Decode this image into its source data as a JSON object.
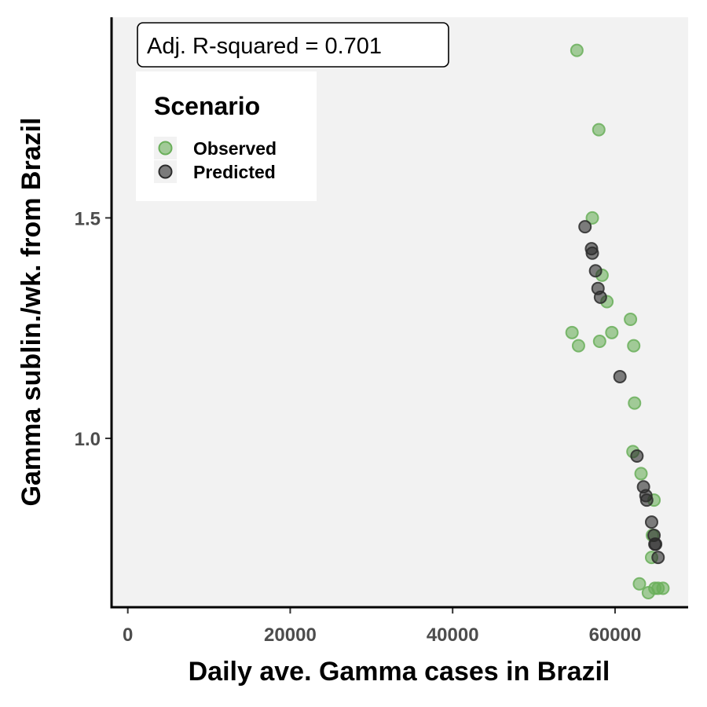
{
  "chart_data": {
    "type": "scatter",
    "annotation": "Adj. R-squared = 0.701",
    "xlabel": "Daily ave. Gamma cases in Brazil",
    "ylabel": "Gamma sublin./wk. from Brazil",
    "xlim": [
      -2000,
      69000
    ],
    "ylim": [
      0.617,
      1.955
    ],
    "xticks": [
      0,
      20000,
      40000,
      60000
    ],
    "xtick_labels": [
      "0",
      "20000",
      "40000",
      "60000"
    ],
    "yticks": [
      1.0,
      1.5
    ],
    "ytick_labels": [
      "1.0",
      "1.5"
    ],
    "grid": false,
    "legend": {
      "title": "Scenario",
      "position": "top-left"
    },
    "colors": {
      "observed": "#6aaf5a",
      "predicted": "#2b2b2b",
      "panel": "#f2f2f2"
    },
    "series": [
      {
        "name": "Observed",
        "points": [
          [
            55300,
            1.88
          ],
          [
            58000,
            1.7
          ],
          [
            57200,
            1.5
          ],
          [
            58400,
            1.37
          ],
          [
            59000,
            1.31
          ],
          [
            54700,
            1.24
          ],
          [
            55500,
            1.21
          ],
          [
            58100,
            1.22
          ],
          [
            59600,
            1.24
          ],
          [
            61900,
            1.27
          ],
          [
            62300,
            1.21
          ],
          [
            62400,
            1.08
          ],
          [
            62200,
            0.97
          ],
          [
            63200,
            0.92
          ],
          [
            64800,
            0.86
          ],
          [
            64600,
            0.78
          ],
          [
            64500,
            0.73
          ],
          [
            63000,
            0.67
          ],
          [
            64100,
            0.65
          ],
          [
            64900,
            0.66
          ],
          [
            65300,
            0.66
          ],
          [
            65900,
            0.66
          ]
        ]
      },
      {
        "name": "Predicted",
        "points": [
          [
            56300,
            1.48
          ],
          [
            57100,
            1.43
          ],
          [
            57200,
            1.42
          ],
          [
            57600,
            1.38
          ],
          [
            57900,
            1.34
          ],
          [
            58200,
            1.32
          ],
          [
            60600,
            1.14
          ],
          [
            62700,
            0.96
          ],
          [
            63500,
            0.89
          ],
          [
            63800,
            0.87
          ],
          [
            63900,
            0.86
          ],
          [
            64500,
            0.81
          ],
          [
            64800,
            0.78
          ],
          [
            64900,
            0.76
          ],
          [
            65000,
            0.76
          ],
          [
            65300,
            0.73
          ]
        ]
      }
    ]
  }
}
